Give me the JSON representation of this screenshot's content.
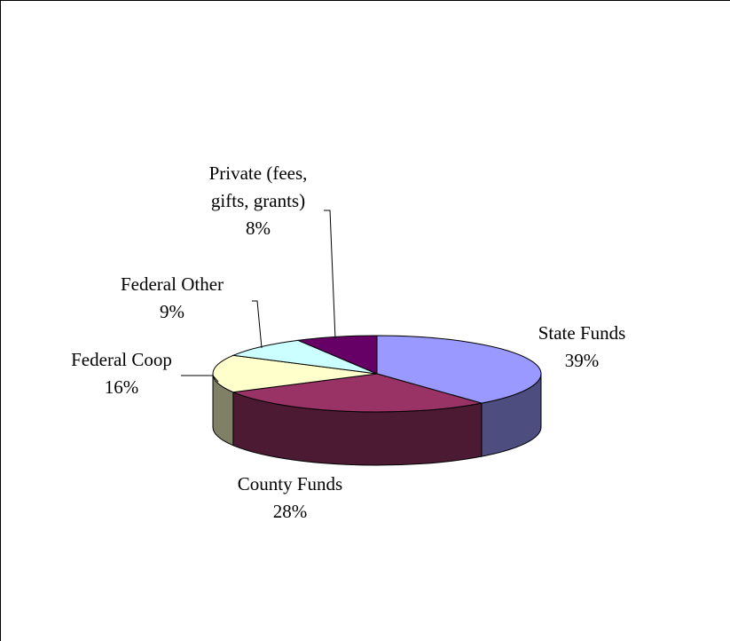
{
  "chart_data": {
    "type": "pie",
    "three_d": true,
    "title": "",
    "slices": [
      {
        "category": [
          "State Funds"
        ],
        "value": 39,
        "value_label": "39%",
        "color": "#9999ff",
        "side_color": "#4d4d80"
      },
      {
        "category": [
          "County Funds"
        ],
        "value": 28,
        "value_label": "28%",
        "color": "#993366",
        "side_color": "#4d1a33"
      },
      {
        "category": [
          "Federal Coop"
        ],
        "value": 16,
        "value_label": "16%",
        "color": "#ffffcc",
        "side_color": "#808066"
      },
      {
        "category": [
          "Federal Other"
        ],
        "value": 9,
        "value_label": "9%",
        "color": "#ccffff",
        "side_color": "#668080"
      },
      {
        "category": [
          "Private (fees,",
          "gifts, grants)"
        ],
        "value": 8,
        "value_label": "8%",
        "color": "#660066",
        "side_color": "#330033"
      }
    ]
  }
}
